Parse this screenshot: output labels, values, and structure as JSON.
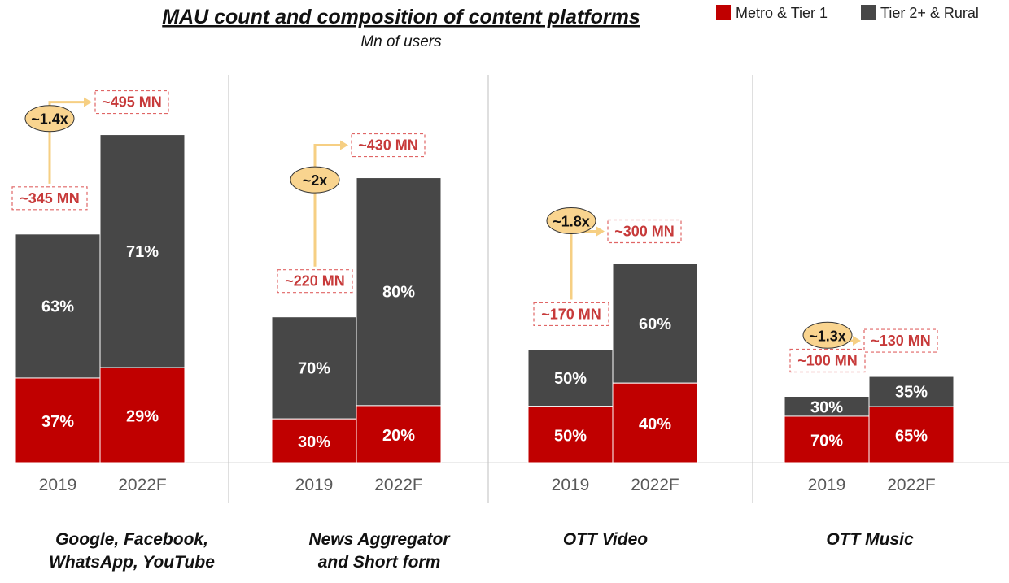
{
  "title": "MAU count and composition of content platforms",
  "subtitle": "Mn of users",
  "legend": [
    {
      "label": "Metro & Tier 1",
      "color": "#c00000"
    },
    {
      "label": "Tier 2+ & Rural",
      "color": "#474747"
    }
  ],
  "colors": {
    "metro": "#c00000",
    "rural": "#474747",
    "growth_fill": "#f9d48f",
    "arrow": "#f6cf83",
    "callout_text": "#c73a3a"
  },
  "chart_data": {
    "type": "bar",
    "stacked": true,
    "unit": "Mn of users",
    "x_tick_labels": [
      "2019",
      "2022F"
    ],
    "legend_placement": "top-right",
    "grid": false,
    "groups": [
      {
        "label": "Google, Facebook, WhatsApp, YouTube",
        "growth": "~1.4x",
        "bars": [
          {
            "year": "2019",
            "total": 345,
            "total_label": "~345 MN",
            "metro_pct": 37,
            "rural_pct": 63,
            "metro_label": "37%",
            "rural_label": "63%"
          },
          {
            "year": "2022F",
            "total": 495,
            "total_label": "~495 MN",
            "metro_pct": 29,
            "rural_pct": 71,
            "metro_label": "29%",
            "rural_label": "71%"
          }
        ]
      },
      {
        "label": "News Aggregator and Short form",
        "growth": "~2x",
        "bars": [
          {
            "year": "2019",
            "total": 220,
            "total_label": "~220 MN",
            "metro_pct": 30,
            "rural_pct": 70,
            "metro_label": "30%",
            "rural_label": "70%"
          },
          {
            "year": "2022F",
            "total": 430,
            "total_label": "~430 MN",
            "metro_pct": 20,
            "rural_pct": 80,
            "metro_label": "20%",
            "rural_label": "80%"
          }
        ]
      },
      {
        "label": "OTT Video",
        "growth": "~1.8x",
        "bars": [
          {
            "year": "2019",
            "total": 170,
            "total_label": "~170 MN",
            "metro_pct": 50,
            "rural_pct": 50,
            "metro_label": "50%",
            "rural_label": "50%"
          },
          {
            "year": "2022F",
            "total": 300,
            "total_label": "~300 MN",
            "metro_pct": 40,
            "rural_pct": 60,
            "metro_label": "40%",
            "rural_label": "60%"
          }
        ]
      },
      {
        "label": "OTT Music",
        "growth": "~1.3x",
        "bars": [
          {
            "year": "2019",
            "total": 100,
            "total_label": "~100 MN",
            "metro_pct": 70,
            "rural_pct": 30,
            "metro_label": "70%",
            "rural_label": "30%"
          },
          {
            "year": "2022F",
            "total": 130,
            "total_label": "~130 MN",
            "metro_pct": 65,
            "rural_pct": 35,
            "metro_label": "65%",
            "rural_label": "35%"
          }
        ]
      }
    ]
  }
}
